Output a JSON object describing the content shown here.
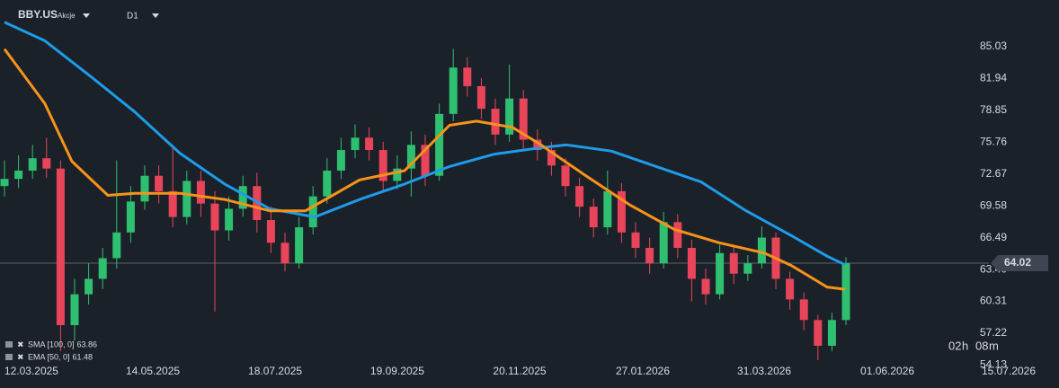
{
  "header": {
    "symbol": "BBY.US",
    "kind": "Akcje",
    "interval": "D1"
  },
  "chart_data": {
    "type": "candlestick",
    "open": [
      71.5,
      72.2,
      73.0,
      74.2,
      73.2,
      58.0,
      61.0,
      62.5,
      64.5,
      67.0,
      70.0,
      72.5,
      71.0,
      68.5,
      72.0,
      69.8,
      67.2,
      69.3,
      71.5,
      68.2,
      66.0,
      64.0,
      67.5,
      70.5,
      73.0,
      75.0,
      76.2,
      75.0,
      72.0,
      73.2,
      75.5,
      72.5,
      78.5,
      83.0,
      81.2,
      79.0,
      76.5,
      80.0,
      76.0,
      75.0,
      73.5,
      71.5,
      69.5,
      67.5,
      71.0,
      67.0,
      65.5,
      64.0,
      68.0,
      65.5,
      62.5,
      61.0,
      65.0,
      63.0,
      64.0,
      66.5,
      62.5,
      60.5,
      58.5,
      56.0,
      58.5
    ],
    "high": [
      74.0,
      74.5,
      75.5,
      76.2,
      74.0,
      62.5,
      64.0,
      65.5,
      74.0,
      71.5,
      73.5,
      73.5,
      75.5,
      73.0,
      73.0,
      71.0,
      70.5,
      72.5,
      72.8,
      69.5,
      67.0,
      68.5,
      71.5,
      74.2,
      76.2,
      77.5,
      77.2,
      75.8,
      74.5,
      76.8,
      76.5,
      79.5,
      84.8,
      84.0,
      82.0,
      80.0,
      83.3,
      80.8,
      77.0,
      75.8,
      74.2,
      72.3,
      70.3,
      73.0,
      71.8,
      68.0,
      66.5,
      69.0,
      68.8,
      66.3,
      63.5,
      65.8,
      65.7,
      64.8,
      67.6,
      67.0,
      63.2,
      61.2,
      59.0,
      59.2,
      64.6
    ],
    "low": [
      70.5,
      71.3,
      72.2,
      72.3,
      55.5,
      56.5,
      60.0,
      61.5,
      63.5,
      66.0,
      69.2,
      69.8,
      67.5,
      67.8,
      68.5,
      59.3,
      66.2,
      68.5,
      67.0,
      65.0,
      63.2,
      63.5,
      66.8,
      69.8,
      72.2,
      74.2,
      74.0,
      71.0,
      71.2,
      70.5,
      71.5,
      72.0,
      77.8,
      80.2,
      78.0,
      75.5,
      75.8,
      75.0,
      74.0,
      72.5,
      70.5,
      68.5,
      66.5,
      66.8,
      66.0,
      64.5,
      63.0,
      63.5,
      64.5,
      60.3,
      60.0,
      60.5,
      62.0,
      62.3,
      63.5,
      61.5,
      59.5,
      57.5,
      54.6,
      55.5,
      58.0
    ],
    "close": [
      72.2,
      73.0,
      74.2,
      73.2,
      58.0,
      61.0,
      62.5,
      64.5,
      67.0,
      70.0,
      72.5,
      71.0,
      68.5,
      72.0,
      69.8,
      67.2,
      69.3,
      71.5,
      68.2,
      66.0,
      64.0,
      67.5,
      70.5,
      73.0,
      75.0,
      76.2,
      75.0,
      72.0,
      73.2,
      75.5,
      72.5,
      78.5,
      83.0,
      81.2,
      79.0,
      76.5,
      80.0,
      76.0,
      75.0,
      73.5,
      71.5,
      69.5,
      67.5,
      71.0,
      67.0,
      65.5,
      64.0,
      68.0,
      65.5,
      62.5,
      61.0,
      65.0,
      63.0,
      64.0,
      66.5,
      62.5,
      60.5,
      58.5,
      56.0,
      58.5,
      64.02
    ],
    "up_color": "#2fbf71",
    "down_color": "#e8445a",
    "series": [
      {
        "name": "SMA [100, 0]",
        "legend_value": 63.86,
        "color": "#1e9be9",
        "x": [
          0,
          2.88,
          6.09,
          9.29,
          12.5,
          15.7,
          18.91,
          22.12,
          25.32,
          28.53,
          31.73,
          34.94,
          38.14,
          40.06,
          43.27,
          46.47,
          49.68,
          52.88,
          56.09,
          58.65,
          59.94
        ],
        "values": [
          87.4,
          85.6,
          82.2,
          78.7,
          74.7,
          71.7,
          69.3,
          68.5,
          70.2,
          71.7,
          73.4,
          74.6,
          75.2,
          75.5,
          74.9,
          73.4,
          71.9,
          69.1,
          66.7,
          64.7,
          63.86
        ]
      },
      {
        "name": "EMA [50, 0]",
        "legend_value": 61.48,
        "color": "#f7931a",
        "x": [
          0,
          2.88,
          4.81,
          7.37,
          9.29,
          12.5,
          15.7,
          18.91,
          21.47,
          25.32,
          28.53,
          31.73,
          33.65,
          36.22,
          38.14,
          41.35,
          44.55,
          47.76,
          50.96,
          54.17,
          56.09,
          58.65,
          59.94
        ],
        "values": [
          84.8,
          79.5,
          73.9,
          70.6,
          70.8,
          70.8,
          70.2,
          69.1,
          69.1,
          72.1,
          73.0,
          77.4,
          77.8,
          77.2,
          75.6,
          72.6,
          69.7,
          67.3,
          66.0,
          65.0,
          63.8,
          61.7,
          61.48
        ]
      }
    ],
    "xlim": [
      -0.32,
      75.19
    ],
    "xticks": [
      {
        "value": 1.92,
        "label": "12.03.2025"
      },
      {
        "value": 10.58,
        "label": "14.05.2025"
      },
      {
        "value": 19.3,
        "label": "18.07.2025"
      },
      {
        "value": 28.01,
        "label": "19.09.2025"
      },
      {
        "value": 36.73,
        "label": "20.11.2025"
      },
      {
        "value": 45.51,
        "label": "27.01.2026"
      },
      {
        "value": 54.17,
        "label": "31.03.2026"
      },
      {
        "value": 62.95,
        "label": "01.06.2026"
      },
      {
        "value": 71.6,
        "label": "15.07.2026"
      }
    ],
    "ylim": [
      53.82,
      89.56
    ],
    "yticks": [
      54.13,
      57.22,
      60.31,
      {
        "value": 63.4,
        "label": "63.40"
      },
      66.49,
      69.58,
      72.67,
      75.76,
      78.85,
      81.94,
      85.03
    ]
  },
  "countdown": {
    "hours": "02",
    "h": "h",
    "minutes": "08",
    "m": "m"
  }
}
